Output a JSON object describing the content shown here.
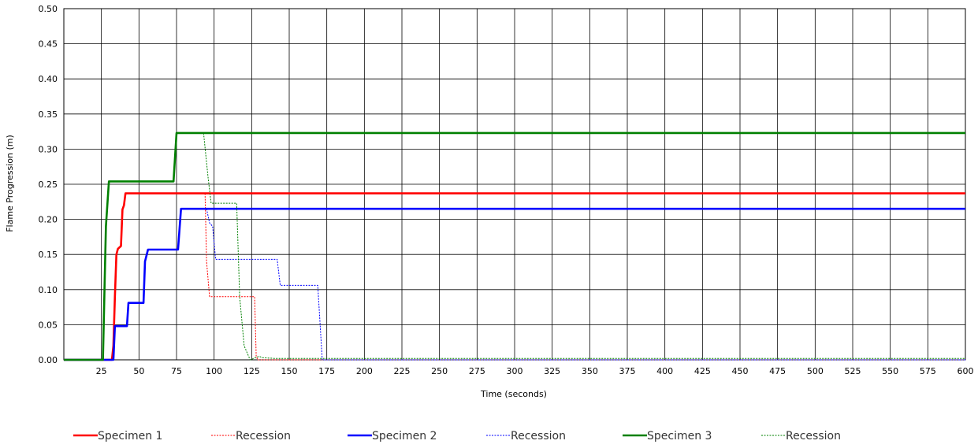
{
  "chart_data": {
    "type": "line",
    "xlabel": "Time (seconds)",
    "ylabel": "Flame Progression (m)",
    "xlim": [
      0,
      600
    ],
    "ylim": [
      0,
      0.5
    ],
    "x_ticks": [
      25,
      50,
      75,
      100,
      125,
      150,
      175,
      200,
      225,
      250,
      275,
      300,
      325,
      350,
      375,
      400,
      425,
      450,
      475,
      500,
      525,
      550,
      575,
      600
    ],
    "y_ticks": [
      0.0,
      0.05,
      0.1,
      0.15,
      0.2,
      0.25,
      0.3,
      0.35,
      0.4,
      0.45,
      0.5
    ],
    "y_tick_labels": [
      "0.00",
      "0.05",
      "0.10",
      "0.15",
      "0.20",
      "0.25",
      "0.30",
      "0.35",
      "0.40",
      "0.45",
      "0.50"
    ],
    "grid": true,
    "legend_position": "bottom",
    "series": [
      {
        "name": "Specimen 1",
        "color": "#ff0000",
        "style": "solid",
        "points": [
          [
            0,
            0
          ],
          [
            32,
            0
          ],
          [
            33,
            0.02
          ],
          [
            34,
            0.09
          ],
          [
            35,
            0.15
          ],
          [
            36,
            0.158
          ],
          [
            38,
            0.162
          ],
          [
            39,
            0.214
          ],
          [
            40,
            0.22
          ],
          [
            41,
            0.237
          ],
          [
            600,
            0.237
          ]
        ]
      },
      {
        "name": "Recession",
        "color": "#ff0000",
        "style": "dotted",
        "points": [
          [
            94,
            0.237
          ],
          [
            95,
            0.14
          ],
          [
            97,
            0.09
          ],
          [
            127,
            0.09
          ],
          [
            128,
            0.005
          ],
          [
            129,
            0
          ],
          [
            600,
            0
          ]
        ]
      },
      {
        "name": "Specimen 2",
        "color": "#0000ff",
        "style": "solid",
        "points": [
          [
            0,
            0
          ],
          [
            33,
            0
          ],
          [
            34,
            0.048
          ],
          [
            42,
            0.048
          ],
          [
            43,
            0.081
          ],
          [
            53,
            0.081
          ],
          [
            54,
            0.14
          ],
          [
            56,
            0.157
          ],
          [
            76,
            0.157
          ],
          [
            78,
            0.215
          ],
          [
            600,
            0.215
          ]
        ]
      },
      {
        "name": "Recession",
        "color": "#0000ff",
        "style": "dotted",
        "points": [
          [
            95,
            0.215
          ],
          [
            97,
            0.195
          ],
          [
            99,
            0.19
          ],
          [
            101,
            0.143
          ],
          [
            142,
            0.143
          ],
          [
            144,
            0.106
          ],
          [
            169,
            0.106
          ],
          [
            172,
            0
          ],
          [
            600,
            0
          ]
        ]
      },
      {
        "name": "Specimen 3",
        "color": "#008000",
        "style": "solid",
        "points": [
          [
            0,
            0
          ],
          [
            26,
            0
          ],
          [
            28,
            0.19
          ],
          [
            30,
            0.254
          ],
          [
            73,
            0.254
          ],
          [
            75,
            0.323
          ],
          [
            600,
            0.323
          ]
        ]
      },
      {
        "name": "Recession",
        "color": "#008000",
        "style": "dotted",
        "points": [
          [
            93,
            0.323
          ],
          [
            96,
            0.26
          ],
          [
            98,
            0.223
          ],
          [
            115,
            0.223
          ],
          [
            117,
            0.09
          ],
          [
            120,
            0.02
          ],
          [
            124,
            0
          ],
          [
            130,
            0.005
          ],
          [
            132,
            0.003
          ],
          [
            140,
            0.002
          ],
          [
            600,
            0.002
          ]
        ]
      }
    ]
  }
}
